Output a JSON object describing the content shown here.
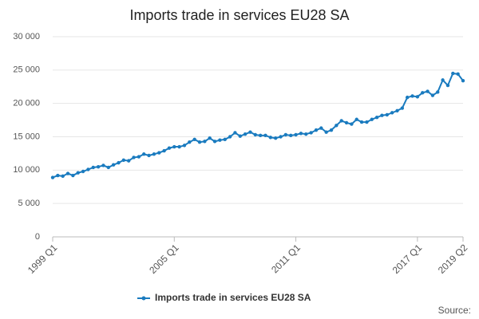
{
  "chart_data": {
    "type": "line",
    "title": "Imports trade in services EU28 SA",
    "categories": [
      "1999 Q1",
      null,
      null,
      null,
      null,
      null,
      null,
      null,
      null,
      null,
      null,
      null,
      null,
      null,
      null,
      null,
      null,
      null,
      null,
      null,
      null,
      null,
      null,
      null,
      "2005 Q1",
      null,
      null,
      null,
      null,
      null,
      null,
      null,
      null,
      null,
      null,
      null,
      null,
      null,
      null,
      null,
      null,
      null,
      null,
      null,
      null,
      null,
      null,
      null,
      "2011 Q1",
      null,
      null,
      null,
      null,
      null,
      null,
      null,
      null,
      null,
      null,
      null,
      null,
      null,
      null,
      null,
      null,
      null,
      null,
      null,
      null,
      null,
      null,
      null,
      "2017 Q1",
      null,
      null,
      null,
      null,
      null,
      null,
      null,
      null,
      "2019 Q2"
    ],
    "series": [
      {
        "name": "Imports trade in services EU28 SA",
        "color": "#1a7bbf",
        "values": [
          8900,
          9200,
          9100,
          9500,
          9200,
          9600,
          9800,
          10100,
          10400,
          10500,
          10700,
          10400,
          10800,
          11100,
          11500,
          11400,
          11900,
          12000,
          12400,
          12200,
          12400,
          12600,
          12900,
          13300,
          13500,
          13500,
          13700,
          14200,
          14600,
          14200,
          14300,
          14800,
          14300,
          14500,
          14600,
          15000,
          15600,
          15100,
          15400,
          15700,
          15300,
          15200,
          15200,
          14900,
          14800,
          15000,
          15300,
          15200,
          15300,
          15500,
          15400,
          15600,
          16000,
          16300,
          15700,
          16000,
          16700,
          17400,
          17100,
          16900,
          17600,
          17200,
          17200,
          17600,
          17900,
          18200,
          18300,
          18600,
          18900,
          19300,
          20900,
          21100,
          21000,
          21600,
          21800,
          21200,
          21700,
          23500,
          22700,
          24500,
          24400,
          23400
        ]
      }
    ],
    "ylim": [
      0,
      30000
    ],
    "yticks": [
      0,
      {
        "value": 5000,
        "label": "5 000"
      },
      {
        "value": 10000,
        "label": "10 000"
      },
      {
        "value": 15000,
        "label": "15 000"
      },
      {
        "value": 20000,
        "label": "20 000"
      },
      {
        "value": 25000,
        "label": "25 000"
      },
      {
        "value": 30000,
        "label": "30 000"
      }
    ],
    "grid": true,
    "legend": "bottom",
    "source": "Source:"
  }
}
